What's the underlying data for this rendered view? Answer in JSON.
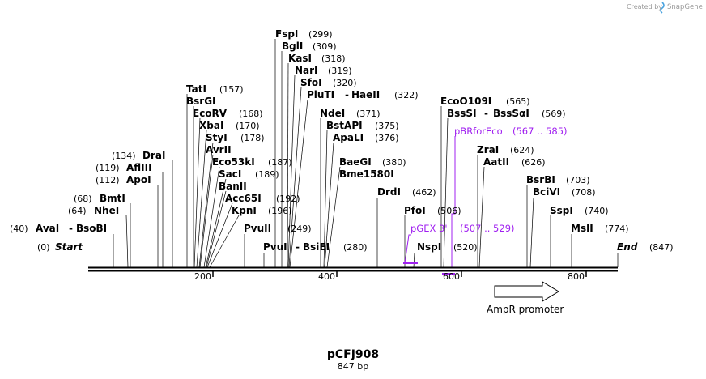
{
  "credit": {
    "prefix": "Created by",
    "brand": "SnapGene"
  },
  "map": {
    "name": "pCFJ908",
    "length_label": "847 bp",
    "length": 847
  },
  "axis_ticks": [
    "200",
    "400",
    "600",
    "800"
  ],
  "sites": [
    {
      "id": "fspi",
      "name": "FspI",
      "pos": "(299)"
    },
    {
      "id": "bgli",
      "name": "BglI",
      "pos": "(309)"
    },
    {
      "id": "kasi",
      "name": "KasI",
      "pos": "(318)"
    },
    {
      "id": "nari",
      "name": "NarI",
      "pos": "(319)"
    },
    {
      "id": "sfoi",
      "name": "SfoI",
      "pos": "(320)"
    },
    {
      "id": "pluti",
      "name": "PluTI",
      "sep": "-",
      "name2": "HaeII",
      "pos": "(322)"
    },
    {
      "id": "tati",
      "name": "TatI",
      "pos": "(157)"
    },
    {
      "id": "bsrgi",
      "name": "BsrGI",
      "pos": ""
    },
    {
      "id": "ecorv",
      "name": "EcoRV",
      "pos": "(168)"
    },
    {
      "id": "xbai",
      "name": "XbaI",
      "pos": "(170)"
    },
    {
      "id": "styi",
      "name": "StyI",
      "pos": "(178)"
    },
    {
      "id": "avrii",
      "name": "AvrII",
      "pos": ""
    },
    {
      "id": "eco53ki",
      "name": "Eco53kI",
      "pos": "(187)"
    },
    {
      "id": "saci",
      "name": "SacI",
      "pos": "(189)"
    },
    {
      "id": "banii",
      "name": "BanII",
      "pos": ""
    },
    {
      "id": "acc65i",
      "name": "Acc65I",
      "pos": "(192)"
    },
    {
      "id": "kpni",
      "name": "KpnI",
      "pos": "(196)"
    },
    {
      "id": "pvuii",
      "name": "PvuII",
      "pos": "(249)"
    },
    {
      "id": "pvui",
      "name": "PvuI",
      "sep": "-",
      "name2": "BsiEI",
      "pos": "(280)"
    },
    {
      "id": "drai",
      "name": "DraI",
      "pos": "(134)"
    },
    {
      "id": "afliii",
      "name": "AflIII",
      "pos": "(119)"
    },
    {
      "id": "apoi",
      "name": "ApoI",
      "pos": "(112)"
    },
    {
      "id": "bmti",
      "name": "BmtI",
      "pos": "(68)"
    },
    {
      "id": "nhei",
      "name": "NheI",
      "pos": "(64)"
    },
    {
      "id": "avai",
      "name": "AvaI",
      "sep": "-",
      "name2": "BsoBI",
      "pos": "(40)"
    },
    {
      "id": "start",
      "name": "Start",
      "pos": "(0)"
    },
    {
      "id": "ndei",
      "name": "NdeI",
      "pos": "(371)"
    },
    {
      "id": "bstapi",
      "name": "BstAPI",
      "pos": "(375)"
    },
    {
      "id": "apali",
      "name": "ApaLI",
      "pos": "(376)"
    },
    {
      "id": "baegi",
      "name": "BaeGI",
      "pos": "(380)"
    },
    {
      "id": "bme1580i",
      "name": "Bme1580I",
      "pos": ""
    },
    {
      "id": "drdi",
      "name": "DrdI",
      "pos": "(462)"
    },
    {
      "id": "pfoi",
      "name": "PfoI",
      "pos": "(506)"
    },
    {
      "id": "nspi",
      "name": "NspI",
      "pos": "(520)"
    },
    {
      "id": "ecoo109i",
      "name": "EcoO109I",
      "pos": "(565)"
    },
    {
      "id": "bsssi",
      "name": "BssSI",
      "sep": "-",
      "name2": "BssSαI",
      "pos": "(569)"
    },
    {
      "id": "zrai",
      "name": "ZraI",
      "pos": "(624)"
    },
    {
      "id": "aatii",
      "name": "AatII",
      "pos": "(626)"
    },
    {
      "id": "bsrbi",
      "name": "BsrBI",
      "pos": "(703)"
    },
    {
      "id": "bcivi",
      "name": "BciVI",
      "pos": "(708)"
    },
    {
      "id": "sspi",
      "name": "SspI",
      "pos": "(740)"
    },
    {
      "id": "msli",
      "name": "MslI",
      "pos": "(774)"
    },
    {
      "id": "end",
      "name": "End",
      "pos": "(847)"
    }
  ],
  "primers": [
    {
      "id": "pbrforeco",
      "name": "pBRforEco",
      "range": "(567 .. 585)",
      "color": "#a020f0"
    },
    {
      "id": "pgex3",
      "name": "pGEX 3'",
      "range": "(507 .. 529)",
      "color": "#a020f0"
    }
  ],
  "features": [
    {
      "id": "ampr",
      "name": "AmpR promoter",
      "direction": "forward"
    }
  ],
  "colors": {
    "primer": "#a020f0",
    "line": "#000000",
    "credit": "#9a9a9a",
    "brand_icon": "#4aa3df"
  }
}
